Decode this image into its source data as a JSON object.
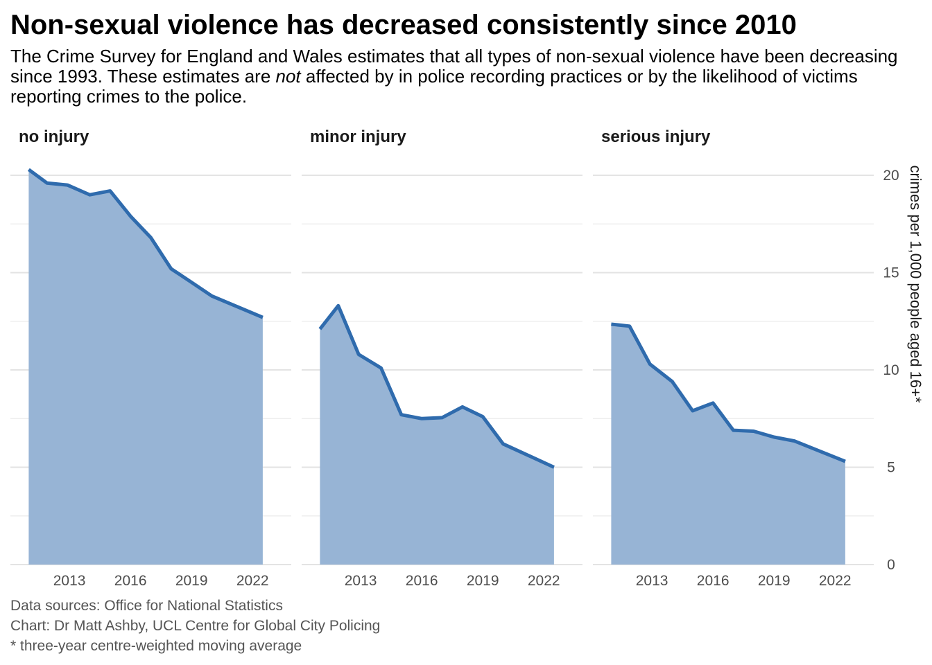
{
  "title": "Non-sexual violence has decreased consistently since 2010",
  "subtitle": {
    "before": "The Crime Survey for England and Wales estimates that all types of non-sexual violence have been decreasing since 1993. These estimates are ",
    "emphasis": "not",
    "after": " affected by in police recording practices or by the likelihood of victims reporting crimes to the police."
  },
  "captions": {
    "sources": "Data sources: Office for National Statistics",
    "credit": "Chart: Dr Matt Ashby, UCL Centre for Global City Policing",
    "note": "* three-year centre-weighted moving average"
  },
  "colors": {
    "line": "#2f6bad",
    "area": "#97b4d5",
    "grid_major": "#e3e3e3",
    "grid_minor": "#eeeeee"
  },
  "chart_data": {
    "type": "area",
    "ylabel": "crimes per 1,000 people aged 16+*",
    "ylim": [
      0,
      21
    ],
    "y_ticks": [
      0,
      5,
      10,
      15,
      20
    ],
    "y_minor_ticks": [
      2.5,
      7.5,
      12.5,
      17.5
    ],
    "x_ticks": [
      2013,
      2016,
      2019,
      2022
    ],
    "x_range": [
      2010.1,
      2023.9
    ],
    "y_axis_position": "right",
    "grid": true,
    "x": [
      2011.0,
      2011.9,
      2012.9,
      2014.0,
      2015.0,
      2016.0,
      2017.0,
      2018.0,
      2019.0,
      2020.0,
      2022.5
    ],
    "series": [
      {
        "name": "no injury",
        "values": [
          20.3,
          19.6,
          19.5,
          19.0,
          19.2,
          17.9,
          16.8,
          15.2,
          14.5,
          13.8,
          12.7
        ]
      },
      {
        "name": "minor injury",
        "values": [
          12.1,
          13.3,
          10.8,
          10.1,
          7.7,
          7.5,
          7.55,
          8.1,
          7.6,
          6.2,
          5.0
        ]
      },
      {
        "name": "serious injury",
        "values": [
          12.35,
          12.25,
          10.3,
          9.4,
          7.9,
          8.3,
          6.9,
          6.85,
          6.55,
          6.35,
          5.3
        ]
      }
    ]
  }
}
